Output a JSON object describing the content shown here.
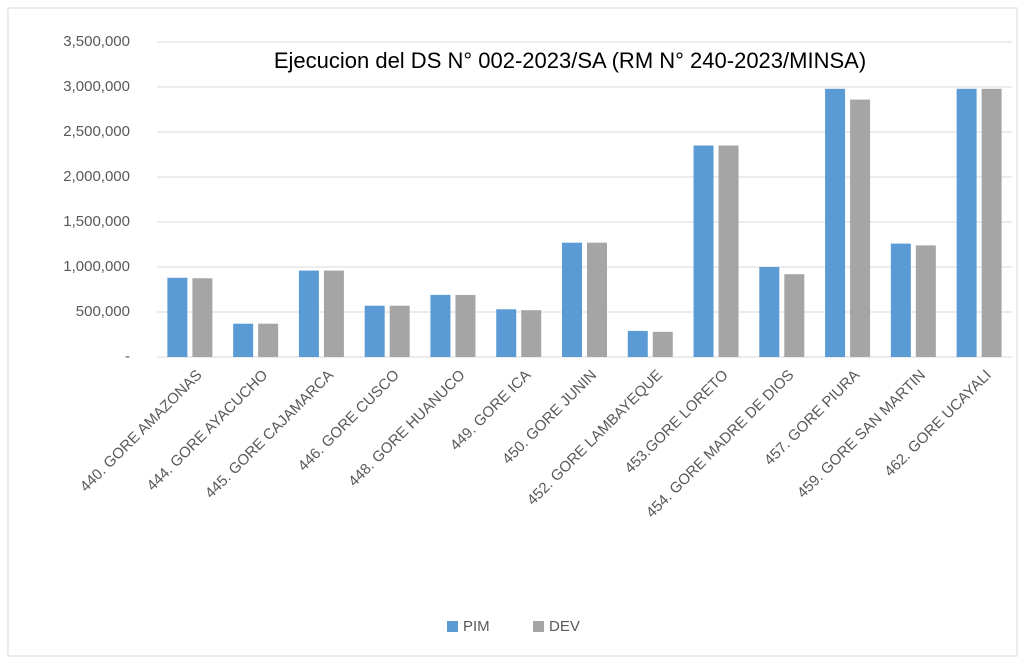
{
  "chart_data": {
    "type": "bar",
    "title": "Ejecucion del DS N° 002-2023/SA  (RM N° 240-2023/MINSA)",
    "categories": [
      "440. GORE AMAZONAS",
      "444. GORE AYACUCHO",
      "445. GORE CAJAMARCA",
      "446. GORE CUSCO",
      "448. GORE HUANUCO",
      "449. GORE ICA",
      "450. GORE JUNIN",
      "452. GORE LAMBAYEQUE",
      "453.GORE LORETO",
      "454. GORE MADRE DE DIOS",
      "457. GORE PIURA",
      "459. GORE SAN MARTIN",
      "462. GORE UCAYALI"
    ],
    "series": [
      {
        "name": "PIM",
        "color": "#5b9bd5",
        "values": [
          880000,
          370000,
          960000,
          570000,
          690000,
          530000,
          1270000,
          290000,
          2350000,
          1000000,
          2980000,
          1260000,
          2980000
        ]
      },
      {
        "name": "DEV",
        "color": "#a5a5a5",
        "values": [
          875000,
          370000,
          960000,
          570000,
          690000,
          520000,
          1270000,
          280000,
          2350000,
          920000,
          2860000,
          1240000,
          2980000
        ]
      }
    ],
    "ylim": [
      0,
      3500000
    ],
    "yticks": [
      {
        "value": 0,
        "label": "-"
      },
      {
        "value": 500000,
        "label": "500,000"
      },
      {
        "value": 1000000,
        "label": "1,000,000"
      },
      {
        "value": 1500000,
        "label": "1,500,000"
      },
      {
        "value": 2000000,
        "label": "2,000,000"
      },
      {
        "value": 2500000,
        "label": "2,500,000"
      },
      {
        "value": 3000000,
        "label": "3,000,000"
      },
      {
        "value": 3500000,
        "label": "3,500,000"
      }
    ],
    "grid": true,
    "legend": "bottom"
  }
}
